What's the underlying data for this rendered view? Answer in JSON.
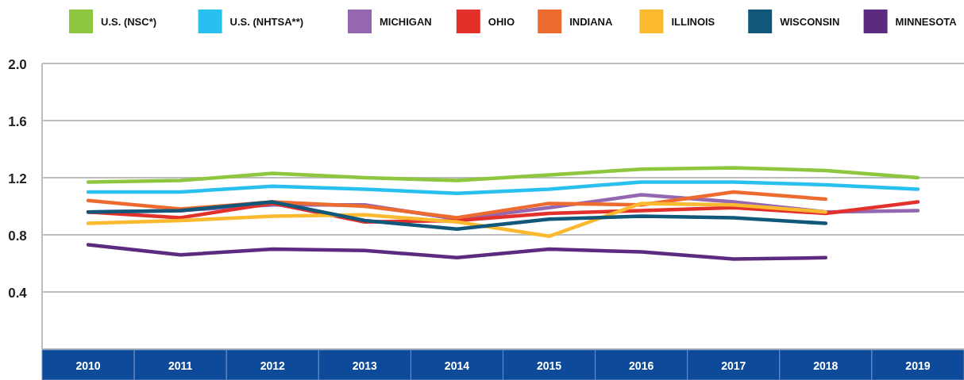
{
  "chart_data": {
    "type": "line",
    "categories": [
      "2010",
      "2011",
      "2012",
      "2013",
      "2014",
      "2015",
      "2016",
      "2017",
      "2018",
      "2019"
    ],
    "ylim": [
      0,
      2
    ],
    "yticks": [
      {
        "value": 0.4,
        "label": "0.4"
      },
      {
        "value": 0.8,
        "label": "0.8"
      },
      {
        "value": 1.2,
        "label": "1.2"
      },
      {
        "value": 1.6,
        "label": "1.6"
      },
      {
        "value": 2,
        "label": "2.0"
      }
    ],
    "grid": "y",
    "legend": "top",
    "marker": "none",
    "line_style": "solid",
    "series": [
      {
        "name": "U.S. (NSC*)",
        "color": "#8dc63f",
        "values": [
          1.17,
          1.18,
          1.23,
          1.2,
          1.18,
          1.22,
          1.26,
          1.27,
          1.25,
          1.2
        ]
      },
      {
        "name": "U.S. (NHTSA**)",
        "color": "#29c0f0",
        "values": [
          1.1,
          1.1,
          1.14,
          1.12,
          1.09,
          1.12,
          1.17,
          1.17,
          1.15,
          1.12
        ]
      },
      {
        "name": "MICHIGAN",
        "color": "#9467b0",
        "values": [
          0.96,
          0.97,
          1.01,
          1.01,
          0.91,
          0.99,
          1.08,
          1.03,
          0.96,
          0.97
        ]
      },
      {
        "name": "OHIO",
        "color": "#e2312a",
        "values": [
          0.96,
          0.92,
          1.02,
          0.89,
          0.9,
          0.95,
          0.97,
          0.99,
          0.95,
          1.03
        ]
      },
      {
        "name": "INDIANA",
        "color": "#ee6b30",
        "values": [
          1.04,
          0.98,
          1.03,
          1.0,
          0.92,
          1.02,
          1.01,
          1.1,
          1.05,
          null
        ]
      },
      {
        "name": "ILLINOIS",
        "color": "#fbb92f",
        "values": [
          0.88,
          0.9,
          0.93,
          0.94,
          0.89,
          0.79,
          1.02,
          1.01,
          0.96,
          null
        ]
      },
      {
        "name": "WISCONSIN",
        "color": "#11577a",
        "values": [
          0.96,
          0.97,
          1.03,
          0.9,
          0.84,
          0.91,
          0.93,
          0.92,
          0.88,
          null
        ]
      },
      {
        "name": "MINNESOTA",
        "color": "#5c2a7f",
        "values": [
          0.73,
          0.66,
          0.7,
          0.69,
          0.64,
          0.7,
          0.68,
          0.63,
          0.64,
          null
        ]
      }
    ]
  }
}
